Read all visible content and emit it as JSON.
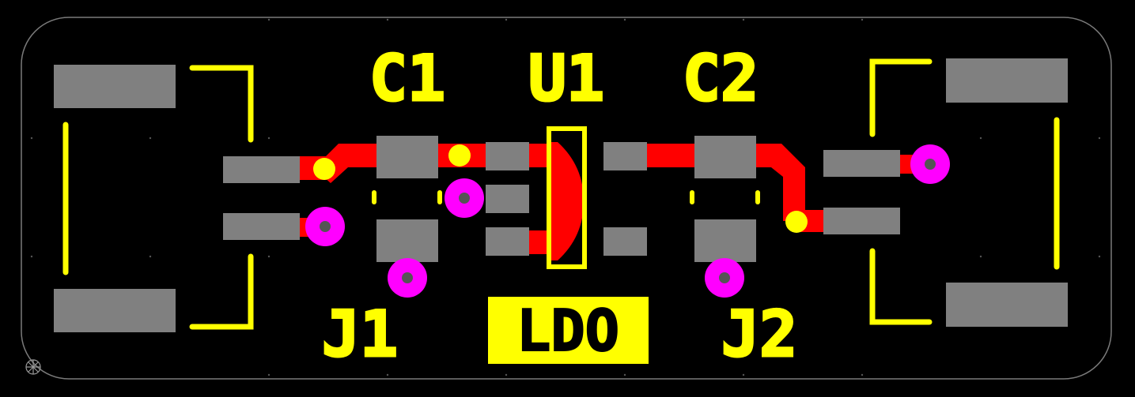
{
  "labels": {
    "c1": "C1",
    "u1": "U1",
    "c2": "C2",
    "j1": "J1",
    "j2": "J2",
    "ldo": "LDO"
  },
  "colors": {
    "background": "#000000",
    "outline": "#7a7a7a",
    "silkscreen": "#ffff00",
    "pad": "#808080",
    "trace": "#ff0000",
    "via": "#ff00ff",
    "via_hole": "#555555",
    "via_small": "#ffff00"
  }
}
